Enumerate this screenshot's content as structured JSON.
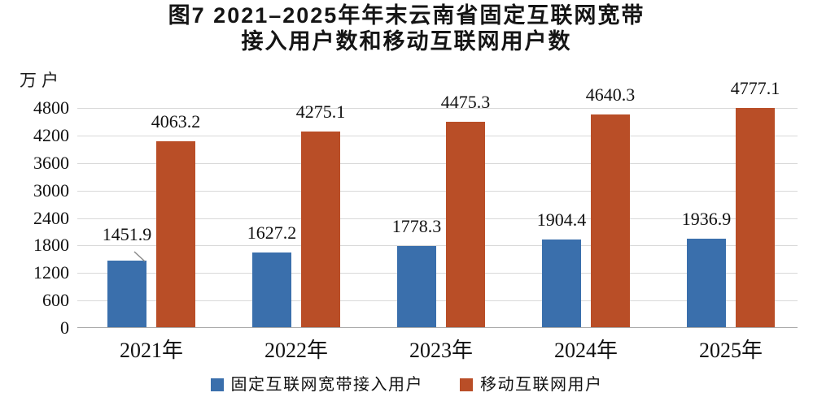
{
  "title": {
    "line1": "图7 2021–2025年年末云南省固定互联网宽带",
    "line2": "接入用户数和移动互联网用户数"
  },
  "unit_label": "万户",
  "chart_data": {
    "type": "bar",
    "title": "图7 2021–2025年年末云南省固定互联网宽带接入用户数和移动互联网用户数",
    "ylabel": "万户",
    "categories": [
      "2021年",
      "2022年",
      "2023年",
      "2024年",
      "2025年"
    ],
    "series": [
      {
        "name": "固定互联网宽带接入用户",
        "color": "#3a6fac",
        "values": [
          1451.9,
          1627.2,
          1778.3,
          1904.4,
          1936.9
        ]
      },
      {
        "name": "移动互联网用户",
        "color": "#b94e27",
        "values": [
          4063.2,
          4275.1,
          4475.3,
          4640.3,
          4777.1
        ]
      }
    ],
    "ylim": [
      0,
      4800
    ],
    "yticks": [
      0,
      600,
      1200,
      1800,
      2400,
      3000,
      3600,
      4200,
      4800
    ],
    "grid": true,
    "data_labels": true,
    "legend_position": "bottom",
    "callout": {
      "series": 0,
      "category": 0
    }
  },
  "colors": {
    "gridline": "#d9d9d9",
    "axis_line": "#a9a9a9",
    "leader_line": "#8a8a8a",
    "text": "#111111"
  }
}
